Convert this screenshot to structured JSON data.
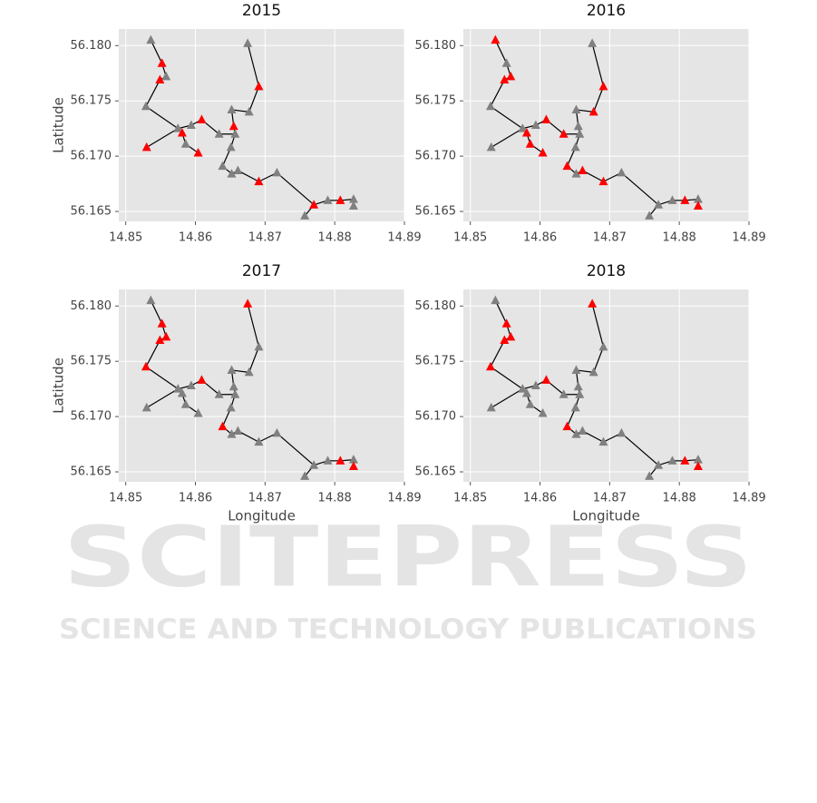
{
  "chart_data": [
    {
      "type": "network-scatter",
      "title": "2015",
      "ylabel": "Latitude",
      "x": [
        14.8536,
        14.8552,
        14.8558,
        14.8549,
        14.8529,
        14.853,
        14.8575,
        14.8581,
        14.8586,
        14.8594,
        14.8604,
        14.8609,
        14.8634,
        14.8652,
        14.8655,
        14.8657,
        14.8651,
        14.8639,
        14.8652,
        14.8661,
        14.8677,
        14.8675,
        14.8691,
        14.8691,
        14.8717,
        14.877,
        14.8757,
        14.879,
        14.8808,
        14.8827,
        14.8827
      ],
      "y": [
        56.1805,
        56.1784,
        56.1772,
        56.1769,
        56.1745,
        56.1708,
        56.1725,
        56.1721,
        56.1711,
        56.1728,
        56.1703,
        56.1733,
        56.172,
        56.1742,
        56.1727,
        56.172,
        56.1708,
        56.1691,
        56.1684,
        56.1687,
        56.174,
        56.1802,
        56.1763,
        56.1677,
        56.1685,
        56.1656,
        56.1646,
        56.166,
        56.166,
        56.1661,
        56.1655
      ],
      "colors": [
        "#808080",
        "#ff0000",
        "#808080",
        "#ff0000",
        "#808080",
        "#ff0000",
        "#808080",
        "#ff0000",
        "#808080",
        "#808080",
        "#ff0000",
        "#ff0000",
        "#808080",
        "#808080",
        "#ff0000",
        "#808080",
        "#808080",
        "#808080",
        "#808080",
        "#808080",
        "#808080",
        "#808080",
        "#ff0000",
        "#ff0000",
        "#808080",
        "#ff0000",
        "#808080",
        "#808080",
        "#ff0000",
        "#808080",
        "#808080"
      ],
      "edges": [
        [
          0,
          1
        ],
        [
          1,
          2
        ],
        [
          2,
          3
        ],
        [
          3,
          4
        ],
        [
          4,
          6
        ],
        [
          5,
          6
        ],
        [
          6,
          7
        ],
        [
          7,
          8
        ],
        [
          8,
          10
        ],
        [
          6,
          9
        ],
        [
          9,
          11
        ],
        [
          11,
          12
        ],
        [
          12,
          15
        ],
        [
          15,
          14
        ],
        [
          14,
          13
        ],
        [
          13,
          20
        ],
        [
          20,
          22
        ],
        [
          22,
          21
        ],
        [
          15,
          16
        ],
        [
          16,
          17
        ],
        [
          17,
          18
        ],
        [
          18,
          19
        ],
        [
          19,
          23
        ],
        [
          23,
          24
        ],
        [
          24,
          25
        ],
        [
          25,
          26
        ],
        [
          25,
          27
        ],
        [
          27,
          28
        ],
        [
          28,
          29
        ],
        [
          29,
          30
        ]
      ],
      "xlim": [
        14.849,
        14.89
      ],
      "ylim": [
        56.1641,
        56.1815
      ],
      "xticks": [
        14.85,
        14.86,
        14.87,
        14.88,
        14.89
      ],
      "yticks": [
        {
          "value": 56.165,
          "label": "56.165"
        },
        {
          "value": 56.17,
          "label": "56.170"
        },
        {
          "value": 56.175,
          "label": "56.175"
        },
        {
          "value": 56.18,
          "label": "56.180"
        }
      ],
      "grid": true
    },
    {
      "type": "network-scatter",
      "title": "2016",
      "x": [
        14.8536,
        14.8552,
        14.8558,
        14.8549,
        14.8529,
        14.853,
        14.8575,
        14.8581,
        14.8586,
        14.8594,
        14.8604,
        14.8609,
        14.8634,
        14.8652,
        14.8655,
        14.8657,
        14.8651,
        14.8639,
        14.8652,
        14.8661,
        14.8677,
        14.8675,
        14.8691,
        14.8691,
        14.8717,
        14.877,
        14.8757,
        14.879,
        14.8808,
        14.8827,
        14.8827
      ],
      "y": [
        56.1805,
        56.1784,
        56.1772,
        56.1769,
        56.1745,
        56.1708,
        56.1725,
        56.1721,
        56.1711,
        56.1728,
        56.1703,
        56.1733,
        56.172,
        56.1742,
        56.1727,
        56.172,
        56.1708,
        56.1691,
        56.1684,
        56.1687,
        56.174,
        56.1802,
        56.1763,
        56.1677,
        56.1685,
        56.1656,
        56.1646,
        56.166,
        56.166,
        56.1661,
        56.1655
      ],
      "colors": [
        "#ff0000",
        "#808080",
        "#ff0000",
        "#ff0000",
        "#808080",
        "#808080",
        "#808080",
        "#ff0000",
        "#ff0000",
        "#808080",
        "#ff0000",
        "#ff0000",
        "#ff0000",
        "#808080",
        "#808080",
        "#808080",
        "#808080",
        "#ff0000",
        "#808080",
        "#ff0000",
        "#ff0000",
        "#808080",
        "#ff0000",
        "#ff0000",
        "#808080",
        "#808080",
        "#808080",
        "#808080",
        "#ff0000",
        "#808080",
        "#ff0000"
      ],
      "edges": [
        [
          0,
          1
        ],
        [
          1,
          2
        ],
        [
          2,
          3
        ],
        [
          3,
          4
        ],
        [
          4,
          6
        ],
        [
          5,
          6
        ],
        [
          6,
          7
        ],
        [
          7,
          8
        ],
        [
          8,
          10
        ],
        [
          6,
          9
        ],
        [
          9,
          11
        ],
        [
          11,
          12
        ],
        [
          12,
          15
        ],
        [
          15,
          14
        ],
        [
          14,
          13
        ],
        [
          13,
          20
        ],
        [
          20,
          22
        ],
        [
          22,
          21
        ],
        [
          15,
          16
        ],
        [
          16,
          17
        ],
        [
          17,
          18
        ],
        [
          18,
          19
        ],
        [
          19,
          23
        ],
        [
          23,
          24
        ],
        [
          24,
          25
        ],
        [
          25,
          26
        ],
        [
          25,
          27
        ],
        [
          27,
          28
        ],
        [
          28,
          29
        ],
        [
          29,
          30
        ]
      ],
      "xlim": [
        14.849,
        14.89
      ],
      "ylim": [
        56.1641,
        56.1815
      ],
      "xticks": [
        14.85,
        14.86,
        14.87,
        14.88,
        14.89
      ],
      "yticks": [
        {
          "value": 56.165,
          "label": "56.165"
        },
        {
          "value": 56.17,
          "label": "56.170"
        },
        {
          "value": 56.175,
          "label": "56.175"
        },
        {
          "value": 56.18,
          "label": "56.180"
        }
      ],
      "grid": true
    },
    {
      "type": "network-scatter",
      "title": "2017",
      "xlabel": "Longitude",
      "ylabel": "Latitude",
      "x": [
        14.8536,
        14.8552,
        14.8558,
        14.8549,
        14.8529,
        14.853,
        14.8575,
        14.8581,
        14.8586,
        14.8594,
        14.8604,
        14.8609,
        14.8634,
        14.8652,
        14.8655,
        14.8657,
        14.8651,
        14.8639,
        14.8652,
        14.8661,
        14.8677,
        14.8675,
        14.8691,
        14.8691,
        14.8717,
        14.877,
        14.8757,
        14.879,
        14.8808,
        14.8827,
        14.8827
      ],
      "y": [
        56.1805,
        56.1784,
        56.1772,
        56.1769,
        56.1745,
        56.1708,
        56.1725,
        56.1721,
        56.1711,
        56.1728,
        56.1703,
        56.1733,
        56.172,
        56.1742,
        56.1727,
        56.172,
        56.1708,
        56.1691,
        56.1684,
        56.1687,
        56.174,
        56.1802,
        56.1763,
        56.1677,
        56.1685,
        56.1656,
        56.1646,
        56.166,
        56.166,
        56.1661,
        56.1655
      ],
      "colors": [
        "#808080",
        "#ff0000",
        "#ff0000",
        "#ff0000",
        "#ff0000",
        "#808080",
        "#808080",
        "#808080",
        "#808080",
        "#808080",
        "#808080",
        "#ff0000",
        "#808080",
        "#808080",
        "#808080",
        "#808080",
        "#808080",
        "#ff0000",
        "#808080",
        "#808080",
        "#808080",
        "#ff0000",
        "#808080",
        "#808080",
        "#808080",
        "#808080",
        "#808080",
        "#808080",
        "#ff0000",
        "#808080",
        "#ff0000"
      ],
      "edges": [
        [
          0,
          1
        ],
        [
          1,
          2
        ],
        [
          2,
          3
        ],
        [
          3,
          4
        ],
        [
          4,
          6
        ],
        [
          5,
          6
        ],
        [
          6,
          7
        ],
        [
          7,
          8
        ],
        [
          8,
          10
        ],
        [
          6,
          9
        ],
        [
          9,
          11
        ],
        [
          11,
          12
        ],
        [
          12,
          15
        ],
        [
          15,
          14
        ],
        [
          14,
          13
        ],
        [
          13,
          20
        ],
        [
          20,
          22
        ],
        [
          22,
          21
        ],
        [
          15,
          16
        ],
        [
          16,
          17
        ],
        [
          17,
          18
        ],
        [
          18,
          19
        ],
        [
          19,
          23
        ],
        [
          23,
          24
        ],
        [
          24,
          25
        ],
        [
          25,
          26
        ],
        [
          25,
          27
        ],
        [
          27,
          28
        ],
        [
          28,
          29
        ],
        [
          29,
          30
        ]
      ],
      "xlim": [
        14.849,
        14.89
      ],
      "ylim": [
        56.1641,
        56.1815
      ],
      "xticks": [
        14.85,
        14.86,
        14.87,
        14.88,
        14.89
      ],
      "yticks": [
        {
          "value": 56.165,
          "label": "56.165"
        },
        {
          "value": 56.17,
          "label": "56.170"
        },
        {
          "value": 56.175,
          "label": "56.175"
        },
        {
          "value": 56.18,
          "label": "56.180"
        }
      ],
      "grid": true
    },
    {
      "type": "network-scatter",
      "title": "2018",
      "xlabel": "Longitude",
      "x": [
        14.8536,
        14.8552,
        14.8558,
        14.8549,
        14.8529,
        14.853,
        14.8575,
        14.8581,
        14.8586,
        14.8594,
        14.8604,
        14.8609,
        14.8634,
        14.8652,
        14.8655,
        14.8657,
        14.8651,
        14.8639,
        14.8652,
        14.8661,
        14.8677,
        14.8675,
        14.8691,
        14.8691,
        14.8717,
        14.877,
        14.8757,
        14.879,
        14.8808,
        14.8827,
        14.8827
      ],
      "y": [
        56.1805,
        56.1784,
        56.1772,
        56.1769,
        56.1745,
        56.1708,
        56.1725,
        56.1721,
        56.1711,
        56.1728,
        56.1703,
        56.1733,
        56.172,
        56.1742,
        56.1727,
        56.172,
        56.1708,
        56.1691,
        56.1684,
        56.1687,
        56.174,
        56.1802,
        56.1763,
        56.1677,
        56.1685,
        56.1656,
        56.1646,
        56.166,
        56.166,
        56.1661,
        56.1655
      ],
      "colors": [
        "#808080",
        "#ff0000",
        "#ff0000",
        "#ff0000",
        "#ff0000",
        "#808080",
        "#808080",
        "#808080",
        "#808080",
        "#808080",
        "#808080",
        "#ff0000",
        "#808080",
        "#808080",
        "#808080",
        "#808080",
        "#808080",
        "#ff0000",
        "#808080",
        "#808080",
        "#808080",
        "#ff0000",
        "#808080",
        "#808080",
        "#808080",
        "#808080",
        "#808080",
        "#808080",
        "#ff0000",
        "#808080",
        "#ff0000"
      ],
      "edges": [
        [
          0,
          1
        ],
        [
          1,
          2
        ],
        [
          2,
          3
        ],
        [
          3,
          4
        ],
        [
          4,
          6
        ],
        [
          5,
          6
        ],
        [
          6,
          7
        ],
        [
          7,
          8
        ],
        [
          8,
          10
        ],
        [
          6,
          9
        ],
        [
          9,
          11
        ],
        [
          11,
          12
        ],
        [
          12,
          15
        ],
        [
          15,
          14
        ],
        [
          14,
          13
        ],
        [
          13,
          20
        ],
        [
          20,
          22
        ],
        [
          22,
          21
        ],
        [
          15,
          16
        ],
        [
          16,
          17
        ],
        [
          17,
          18
        ],
        [
          18,
          19
        ],
        [
          19,
          23
        ],
        [
          23,
          24
        ],
        [
          24,
          25
        ],
        [
          25,
          26
        ],
        [
          25,
          27
        ],
        [
          27,
          28
        ],
        [
          28,
          29
        ],
        [
          29,
          30
        ]
      ],
      "xlim": [
        14.849,
        14.89
      ],
      "ylim": [
        56.1641,
        56.1815
      ],
      "xticks": [
        14.85,
        14.86,
        14.87,
        14.88,
        14.89
      ],
      "yticks": [
        {
          "value": 56.165,
          "label": "56.165"
        },
        {
          "value": 56.17,
          "label": "56.170"
        },
        {
          "value": 56.175,
          "label": "56.175"
        },
        {
          "value": 56.18,
          "label": "56.180"
        }
      ],
      "grid": true
    }
  ],
  "watermark": {
    "title": "SCITEPRESS",
    "subtitle": "SCIENCE AND TECHNOLOGY PUBLICATIONS"
  }
}
